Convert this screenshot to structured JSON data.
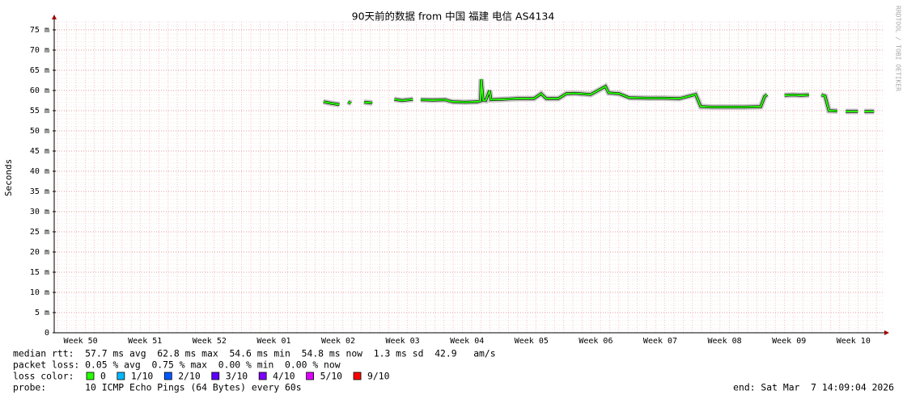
{
  "chart_data": {
    "type": "line",
    "title": "90天前的数据 from 中国 福建 电信 AS4134",
    "y_label": "Seconds",
    "watermark": "RRDTOOL / TOBI OETIKER",
    "xlim": [
      0.09,
      12.98
    ],
    "xticks": [
      {
        "value": 0.5,
        "label": "Week 50"
      },
      {
        "value": 1.5,
        "label": "Week 51"
      },
      {
        "value": 2.5,
        "label": "Week 52"
      },
      {
        "value": 3.5,
        "label": "Week 01"
      },
      {
        "value": 4.5,
        "label": "Week 02"
      },
      {
        "value": 5.5,
        "label": "Week 03"
      },
      {
        "value": 6.5,
        "label": "Week 04"
      },
      {
        "value": 7.5,
        "label": "Week 05"
      },
      {
        "value": 8.5,
        "label": "Week 06"
      },
      {
        "value": 9.5,
        "label": "Week 07"
      },
      {
        "value": 10.5,
        "label": "Week 08"
      },
      {
        "value": 11.5,
        "label": "Week 09"
      },
      {
        "value": 12.5,
        "label": "Week 10"
      }
    ],
    "ylim": [
      0,
      0.077
    ],
    "yticks": [
      0,
      {
        "value": 0.005,
        "label": "5 m"
      },
      {
        "value": 0.01,
        "label": "10 m"
      },
      {
        "value": 0.015,
        "label": "15 m"
      },
      {
        "value": 0.02,
        "label": "20 m"
      },
      {
        "value": 0.025,
        "label": "25 m"
      },
      {
        "value": 0.03,
        "label": "30 m"
      },
      {
        "value": 0.035,
        "label": "35 m"
      },
      {
        "value": 0.04,
        "label": "40 m"
      },
      {
        "value": 0.045,
        "label": "45 m"
      },
      {
        "value": 0.05,
        "label": "50 m"
      },
      {
        "value": 0.055,
        "label": "55 m"
      },
      {
        "value": 0.06,
        "label": "60 m"
      },
      {
        "value": 0.065,
        "label": "65 m"
      },
      {
        "value": 0.07,
        "label": "70 m"
      },
      {
        "value": 0.075,
        "label": "75 m"
      }
    ],
    "grid": true,
    "x": [
      4.27,
      4.4,
      4.52,
      4.59,
      4.65,
      4.7,
      4.78,
      4.9,
      5.03,
      5.15,
      5.37,
      5.49,
      5.66,
      5.72,
      5.78,
      5.97,
      6.16,
      6.22,
      6.28,
      6.47,
      6.66,
      6.71,
      6.72,
      6.75,
      6.79,
      6.85,
      6.87,
      7.04,
      7.29,
      7.54,
      7.65,
      7.73,
      7.92,
      8.04,
      8.17,
      8.42,
      8.65,
      8.7,
      8.86,
      9.02,
      9.3,
      9.55,
      9.8,
      10.05,
      10.13,
      10.3,
      10.55,
      10.81,
      11.06,
      11.12,
      11.16,
      11.24,
      11.43,
      11.56,
      11.69,
      11.81,
      11.91,
      12.0,
      12.06,
      12.12,
      12.25,
      12.31,
      12.38,
      12.57,
      12.63,
      12.67,
      12.82
    ],
    "series": [
      {
        "name": "median rtt",
        "color": "#26ff00",
        "values": [
          0.0572,
          0.0568,
          0.0565,
          null,
          0.0572,
          0.0568,
          null,
          0.0571,
          0.0569,
          null,
          0.0578,
          0.0575,
          0.0578,
          null,
          0.0577,
          0.0576,
          0.0577,
          0.0574,
          0.0572,
          0.0571,
          0.0572,
          0.0574,
          0.0628,
          0.0576,
          0.0575,
          0.06,
          0.0577,
          0.0578,
          0.058,
          0.058,
          0.0592,
          0.058,
          0.058,
          0.0592,
          0.0593,
          0.059,
          0.061,
          0.0594,
          0.0592,
          0.0582,
          0.0581,
          0.0581,
          0.058,
          0.059,
          0.056,
          0.0559,
          0.0559,
          0.0559,
          0.056,
          0.0585,
          0.059,
          null,
          0.0588,
          0.0589,
          0.0588,
          0.0589,
          null,
          0.0589,
          0.0586,
          0.055,
          0.0549,
          null,
          0.0548,
          0.0548,
          null,
          0.0548,
          0.0548
        ]
      }
    ],
    "stats": [
      "median rtt:  57.7 ms avg  62.8 ms max  54.6 ms min  54.8 ms now  1.3 ms sd  42.9   am/s",
      "packet loss: 0.05 % avg  0.75 % max  0.00 % min  0.00 % now"
    ],
    "loss_label": "loss color:",
    "loss_colors": [
      {
        "color": "#26ff00",
        "label": "0"
      },
      {
        "color": "#00b8ff",
        "label": "1/10"
      },
      {
        "color": "#0059ff",
        "label": "2/10"
      },
      {
        "color": "#5e00ff",
        "label": "3/10"
      },
      {
        "color": "#7e00ff",
        "label": "4/10"
      },
      {
        "color": "#dd00ff",
        "label": "5/10"
      },
      {
        "color": "#ff0000",
        "label": "9/10"
      }
    ],
    "probe": "probe:       10 ICMP Echo Pings (64 Bytes) every 60s",
    "end": "end: Sat Mar  7 14:09:04 2026"
  }
}
